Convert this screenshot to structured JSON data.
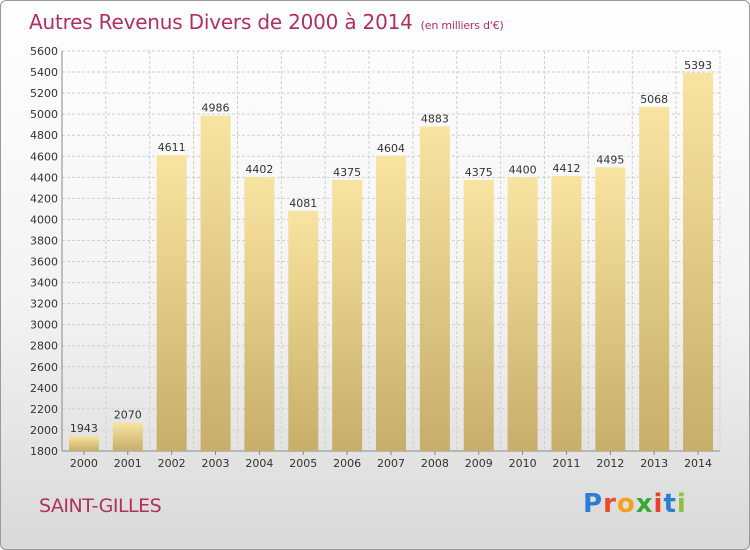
{
  "header": {
    "title": "Autres Revenus Divers de 2000 à 2014",
    "unit": "(en milliers d'€)"
  },
  "footer": {
    "city": "SAINT-GILLES",
    "logo_text": "Proxiti"
  },
  "colors": {
    "title": "#b0305a",
    "bar_top": "#f8e4a0",
    "bar_bottom": "#c7ae6a",
    "grid": "#d0d0d0"
  },
  "chart_data": {
    "type": "bar",
    "title": "Autres Revenus Divers de 2000 à 2014",
    "xlabel": "",
    "ylabel": "",
    "ylim": [
      1800,
      5600
    ],
    "yticks": [
      1800,
      2000,
      2200,
      2400,
      2600,
      2800,
      3000,
      3200,
      3400,
      3600,
      3800,
      4000,
      4200,
      4400,
      4600,
      4800,
      5000,
      5200,
      5400,
      5600
    ],
    "categories": [
      "2000",
      "2001",
      "2002",
      "2003",
      "2004",
      "2005",
      "2006",
      "2007",
      "2008",
      "2009",
      "2010",
      "2011",
      "2012",
      "2013",
      "2014"
    ],
    "values": [
      1943,
      2070,
      4611,
      4986,
      4402,
      4081,
      4375,
      4604,
      4883,
      4375,
      4400,
      4412,
      4495,
      5068,
      5393
    ],
    "grid": true
  }
}
